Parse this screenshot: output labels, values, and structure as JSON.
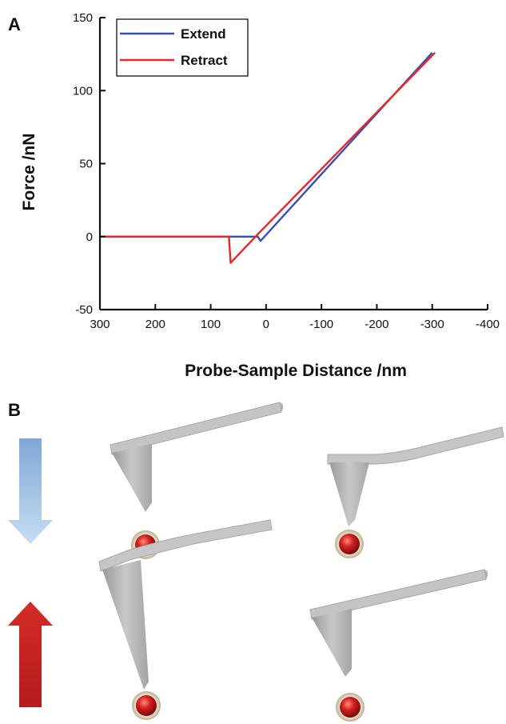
{
  "panels": {
    "a_label": "A",
    "b_label": "B"
  },
  "chart_data": {
    "type": "line",
    "title": "",
    "xlabel": "Probe-Sample Distance  /nm",
    "ylabel": "Force  /nN",
    "xlim": [
      300,
      -400
    ],
    "ylim": [
      -50,
      150
    ],
    "x_reversed": true,
    "x_ticks": [
      300,
      200,
      100,
      0,
      -100,
      -200,
      -300,
      -400
    ],
    "x_tick_labels": [
      "300",
      "200",
      "100",
      "0",
      "-100",
      "-200",
      "-300",
      "-400"
    ],
    "y_ticks": [
      -50,
      0,
      50,
      100,
      150
    ],
    "y_tick_labels": [
      "-50",
      "0",
      "50",
      "100",
      "150"
    ],
    "grid": false,
    "legend_position": "top-left",
    "series": [
      {
        "name": "Extend",
        "color": "#3a4fb0",
        "x": [
          300,
          15,
          10,
          -300
        ],
        "y": [
          0,
          0,
          -3,
          126
        ]
      },
      {
        "name": "Retract",
        "color": "#e8262b",
        "x": [
          300,
          67,
          64,
          14,
          -305
        ],
        "y": [
          0,
          0,
          -18,
          2,
          126
        ]
      }
    ]
  },
  "diagram": {
    "arrow_down_color": "#9cc3e6",
    "arrow_up_color": "#d42b27",
    "cantilever_color": "#c4c4c4",
    "particle_color": "#cc1f1f"
  }
}
